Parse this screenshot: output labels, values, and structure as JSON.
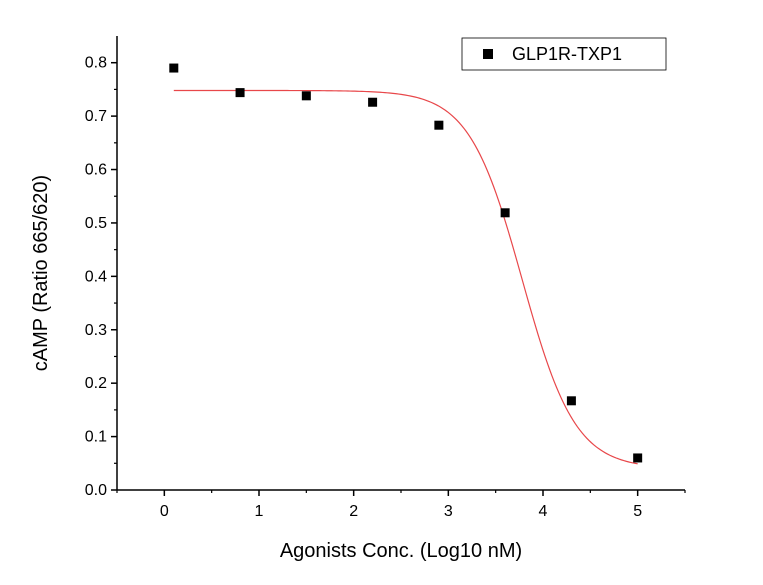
{
  "chart_data": {
    "type": "scatter",
    "title": "",
    "xlabel": "Agonists Conc. (Log10 nM)",
    "ylabel": "cAMP (Ratio 665/620)",
    "xlim": [
      -0.5,
      5.5
    ],
    "ylim": [
      0.0,
      0.85
    ],
    "x_ticks": [
      "0",
      "1",
      "2",
      "3",
      "4",
      "5"
    ],
    "y_ticks": [
      "0.0",
      "0.1",
      "0.2",
      "0.3",
      "0.4",
      "0.5",
      "0.6",
      "0.7",
      "0.8"
    ],
    "grid": false,
    "legend_position": "top-right",
    "series": [
      {
        "name": "GLP1R-TXP1",
        "marker": "square",
        "color": "#000000",
        "x": [
          0.1,
          0.8,
          1.5,
          2.2,
          2.9,
          3.6,
          4.3,
          5.0
        ],
        "y": [
          0.79,
          0.744,
          0.738,
          0.726,
          0.683,
          0.519,
          0.167,
          0.06
        ]
      }
    ],
    "fit_curve": {
      "model": "logistic",
      "color": "#e8474a",
      "x_range": [
        0.1,
        5.0
      ],
      "top": 0.748,
      "bottom": 0.04,
      "log_ic50": 3.78,
      "hill": 1.55
    }
  }
}
